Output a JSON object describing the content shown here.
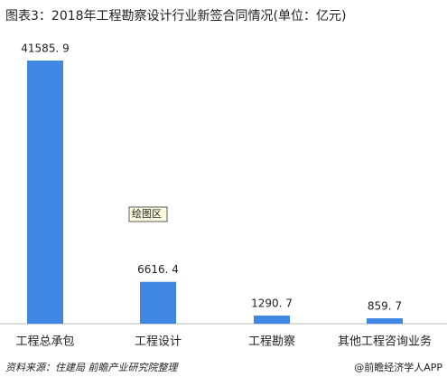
{
  "chart_data": {
    "type": "bar",
    "title": "图表3：2018年工程勘察设计行业新签合同情况(单位：亿元)",
    "categories": [
      "工程总承包",
      "工程设计",
      "工程勘察",
      "其他工程咨询业务"
    ],
    "values": [
      41585.9,
      6616.4,
      1290.7,
      859.7
    ],
    "value_labels": [
      "41585. 9",
      "6616. 4",
      "1290. 7",
      "859. 7"
    ],
    "color": "#3f87e3",
    "annotation": "绘图区",
    "source": "资料来源：住建局 前瞻产业研究院整理",
    "credit": "@前瞻经济学人APP"
  }
}
